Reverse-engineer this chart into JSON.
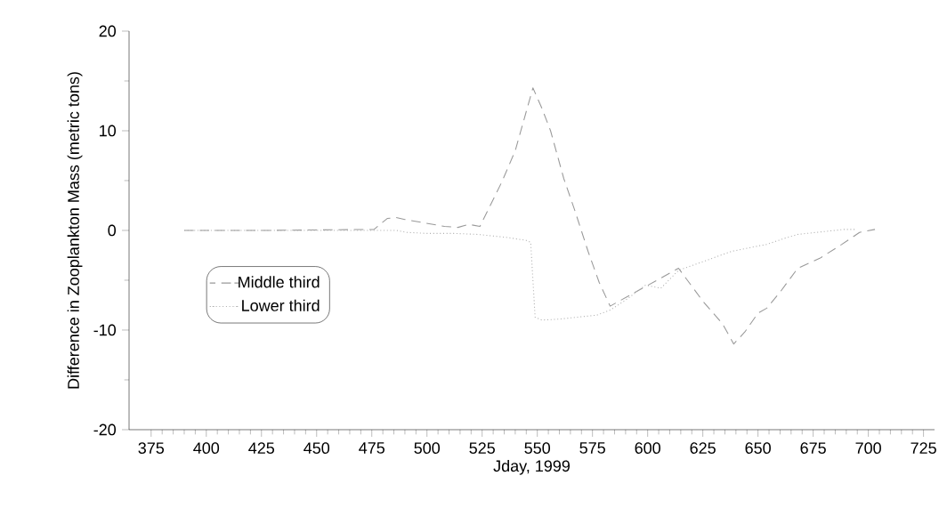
{
  "chart_data": {
    "type": "line",
    "xlabel": "Jday, 1999",
    "ylabel": "Difference in Zooplankton Mass (metric tons)",
    "xlim": [
      365,
      730
    ],
    "xticks": [
      375,
      400,
      425,
      450,
      475,
      500,
      525,
      550,
      575,
      600,
      625,
      650,
      675,
      700,
      725
    ],
    "ylim": [
      -20,
      20
    ],
    "yticks": [
      -20,
      -10,
      0,
      10,
      20
    ],
    "legend": "left",
    "grid": false,
    "series": [
      {
        "name": "Middle third",
        "color": "#999999",
        "line_style": "dashed",
        "x": [
          390,
          428,
          476,
          482,
          486,
          490,
          508,
          514,
          519,
          524,
          534,
          540,
          548,
          552,
          556,
          562,
          567,
          573,
          578,
          583,
          614,
          618,
          625,
          634,
          639,
          644,
          650,
          654,
          660,
          668,
          678,
          688,
          696,
          703
        ],
        "values": [
          0,
          0,
          0.1,
          1.2,
          1.3,
          1.1,
          0.4,
          0.3,
          0.6,
          0.4,
          4.9,
          8,
          14.3,
          12.3,
          10,
          5.2,
          2,
          -2.1,
          -5.2,
          -7.6,
          -3.8,
          -5,
          -7.1,
          -9.4,
          -11.4,
          -10.2,
          -8.3,
          -7.8,
          -6.2,
          -3.8,
          -2.8,
          -1.4,
          -0.2,
          0.1
        ]
      },
      {
        "name": "Lower third",
        "color": "#b0b0b0",
        "line_style": "dotted",
        "x": [
          390,
          428,
          476,
          486,
          491,
          500,
          512,
          523,
          536,
          545,
          547,
          549,
          552,
          560,
          577,
          583,
          590,
          599,
          606,
          614,
          628,
          638,
          654,
          662,
          668,
          689,
          694
        ],
        "values": [
          0,
          0,
          0,
          0,
          -0.2,
          -0.3,
          -0.3,
          -0.4,
          -0.7,
          -1,
          -1.2,
          -8.7,
          -9,
          -8.9,
          -8.5,
          -8,
          -7,
          -5.5,
          -5.8,
          -4,
          -2.9,
          -2.1,
          -1.4,
          -0.8,
          -0.4,
          0.1,
          0.1
        ]
      }
    ]
  }
}
